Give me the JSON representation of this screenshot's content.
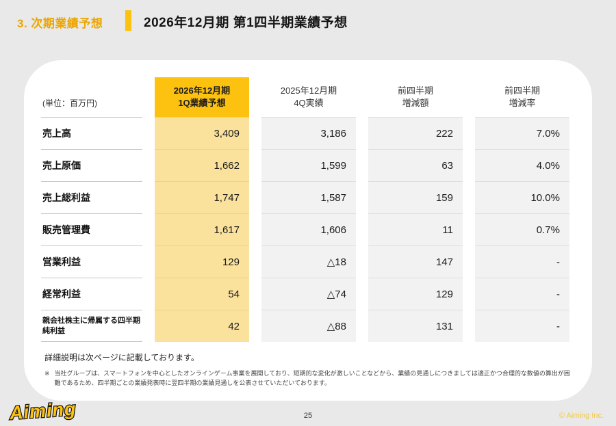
{
  "header": {
    "section_label": "3. 次期業績予想",
    "title": "2026年12月期 第1四半期業績予想"
  },
  "table": {
    "unit_label": "(単位：百万円)",
    "columns": [
      {
        "line1": "2026年12月期",
        "line2": "1Q業績予想"
      },
      {
        "line1": "2025年12月期",
        "line2": "4Q実績"
      },
      {
        "line1": "前四半期",
        "line2": "増減額"
      },
      {
        "line1": "前四半期",
        "line2": "増減率"
      }
    ],
    "rows": [
      {
        "label": "売上高",
        "forecast": "3,409",
        "actual": "3,186",
        "change": "222",
        "rate": "7.0%"
      },
      {
        "label": "売上原価",
        "forecast": "1,662",
        "actual": "1,599",
        "change": "63",
        "rate": "4.0%"
      },
      {
        "label": "売上総利益",
        "forecast": "1,747",
        "actual": "1,587",
        "change": "159",
        "rate": "10.0%"
      },
      {
        "label": "販売管理費",
        "forecast": "1,617",
        "actual": "1,606",
        "change": "11",
        "rate": "0.7%"
      },
      {
        "label": "営業利益",
        "forecast": "129",
        "actual": "△18",
        "change": "147",
        "rate": "-"
      },
      {
        "label": "経常利益",
        "forecast": "54",
        "actual": "△74",
        "change": "129",
        "rate": "-"
      },
      {
        "label": "親会社株主に帰属する四半期純利益",
        "forecast": "42",
        "actual": "△88",
        "change": "131",
        "rate": "-"
      }
    ]
  },
  "notes": {
    "detail": "詳細説明は次ページに記載しております。",
    "marker": "※",
    "disclaimer": "当社グループは、スマートフォンを中心としたオンラインゲーム事業を展開しており、短期的な変化が激しいことなどから、業績の見通しにつきましては適正かつ合理的な数値の算出が困難であるため、四半期ごとの業績発表時に翌四半期の業績見通しを公表させていただいております。"
  },
  "footer": {
    "logo_text": "Aiming",
    "page_number": "25",
    "copyright": "© Aiming Inc."
  },
  "colors": {
    "background": "#e9e9e9",
    "accent_yellow": "#fdc10f",
    "highlight_cell": "#fae29c",
    "gray_cell": "#f2f2f2",
    "section_text": "#eca600",
    "copyright_text": "#f3c83e"
  }
}
